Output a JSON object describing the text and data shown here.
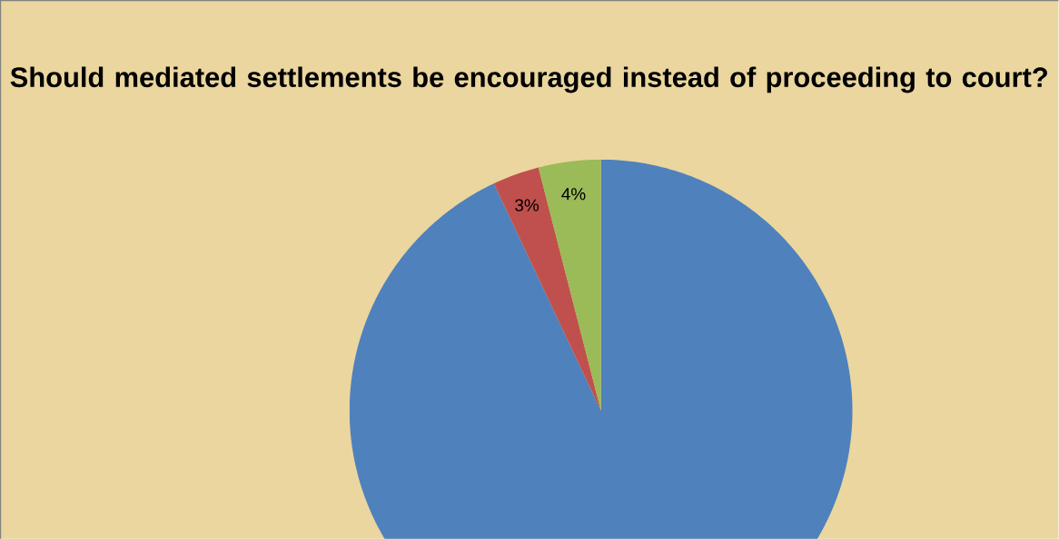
{
  "chart_data": {
    "type": "pie",
    "title": "Should mediated settlements be encouraged instead of proceeding to court?",
    "categories": [
      null,
      null,
      null
    ],
    "values": [
      93,
      3,
      4
    ],
    "colors": [
      "#4f81bd",
      "#c0504d",
      "#9bbb59"
    ],
    "value_labels": [
      null,
      "3%",
      "4%"
    ]
  }
}
